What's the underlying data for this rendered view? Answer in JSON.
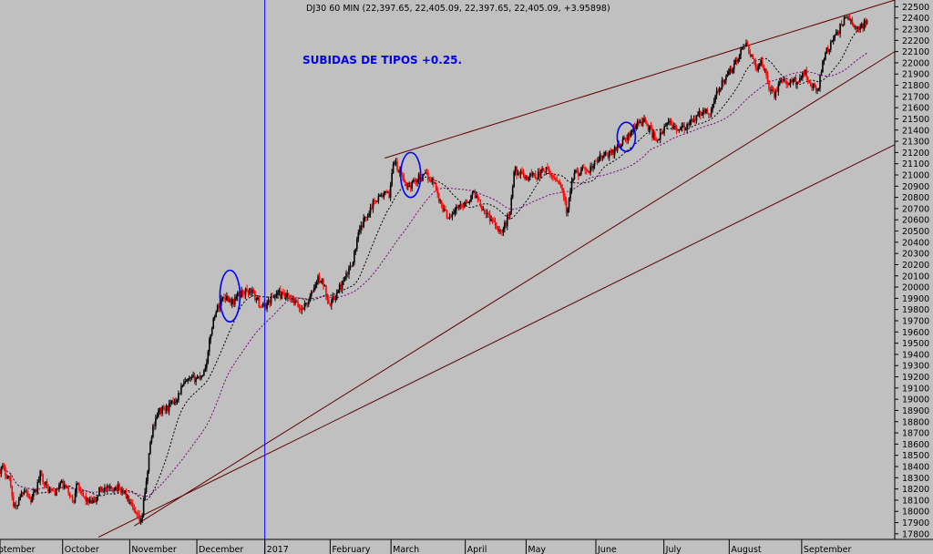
{
  "chart_data": {
    "type": "candlestick",
    "symbol_header": "DJ30 60 MIN (22,397.65, 22,405.09, 22,397.65, 22,405.09, +3.95898)",
    "annotation": "SUBIDAS DE TIPOS +0.25.",
    "x_axis": {
      "labels": [
        "September",
        "October",
        "November",
        "December",
        "2017",
        "February",
        "March",
        "April",
        "May",
        "June",
        "July",
        "August",
        "September"
      ]
    },
    "y_axis": {
      "side": "right",
      "ylim": [
        17750,
        22560
      ],
      "ticks": [
        17800,
        17900,
        18000,
        18100,
        18200,
        18300,
        18400,
        18500,
        18600,
        18700,
        18800,
        18900,
        19000,
        19100,
        19200,
        19300,
        19400,
        19500,
        19600,
        19700,
        19800,
        19900,
        20000,
        20100,
        20200,
        20300,
        20400,
        20500,
        20600,
        20700,
        20800,
        20900,
        21000,
        21100,
        21200,
        21300,
        21400,
        21500,
        21600,
        21700,
        21800,
        21900,
        22000,
        22100,
        22200,
        22300,
        22400,
        22500
      ]
    },
    "x_range": [
      0,
      1000
    ],
    "price_keyframes": [
      [
        0,
        18370
      ],
      [
        3,
        18390
      ],
      [
        7,
        18330
      ],
      [
        10,
        18310
      ],
      [
        13,
        18200
      ],
      [
        15,
        18050
      ],
      [
        18,
        18030
      ],
      [
        22,
        18140
      ],
      [
        28,
        18210
      ],
      [
        34,
        18090
      ],
      [
        40,
        18180
      ],
      [
        45,
        18330
      ],
      [
        49,
        18280
      ],
      [
        53,
        18200
      ],
      [
        58,
        18180
      ],
      [
        63,
        18170
      ],
      [
        67,
        18250
      ],
      [
        72,
        18220
      ],
      [
        78,
        18160
      ],
      [
        82,
        18060
      ],
      [
        86,
        18310
      ],
      [
        90,
        18150
      ],
      [
        95,
        18120
      ],
      [
        100,
        18070
      ],
      [
        106,
        18080
      ],
      [
        112,
        18210
      ],
      [
        117,
        18200
      ],
      [
        123,
        18190
      ],
      [
        128,
        18220
      ],
      [
        134,
        18200
      ],
      [
        138,
        18180
      ],
      [
        142,
        18120
      ],
      [
        146,
        18060
      ],
      [
        150,
        17980
      ],
      [
        155,
        17930
      ],
      [
        158,
        17890
      ],
      [
        161,
        18150
      ],
      [
        164,
        18250
      ],
      [
        166,
        18480
      ],
      [
        168,
        18600
      ],
      [
        171,
        18750
      ],
      [
        175,
        18860
      ],
      [
        179,
        18900
      ],
      [
        185,
        18910
      ],
      [
        190,
        18940
      ],
      [
        194,
        18980
      ],
      [
        198,
        19020
      ],
      [
        203,
        19100
      ],
      [
        208,
        19150
      ],
      [
        213,
        19170
      ],
      [
        218,
        19190
      ],
      [
        223,
        19200
      ],
      [
        228,
        19250
      ],
      [
        232,
        19380
      ],
      [
        236,
        19620
      ],
      [
        240,
        19760
      ],
      [
        245,
        19850
      ],
      [
        250,
        19920
      ],
      [
        255,
        19900
      ],
      [
        260,
        19860
      ],
      [
        265,
        19920
      ],
      [
        270,
        19950
      ],
      [
        275,
        19960
      ],
      [
        281,
        19970
      ],
      [
        286,
        19900
      ],
      [
        290,
        19850
      ],
      [
        295,
        19820
      ],
      [
        300,
        19870
      ],
      [
        306,
        19920
      ],
      [
        311,
        19950
      ],
      [
        316,
        19920
      ],
      [
        321,
        19910
      ],
      [
        326,
        19880
      ],
      [
        331,
        19850
      ],
      [
        336,
        19800
      ],
      [
        341,
        19840
      ],
      [
        346,
        19890
      ],
      [
        351,
        20000
      ],
      [
        356,
        20080
      ],
      [
        361,
        20040
      ],
      [
        366,
        19900
      ],
      [
        370,
        19860
      ],
      [
        375,
        19920
      ],
      [
        380,
        20000
      ],
      [
        385,
        20060
      ],
      [
        390,
        20150
      ],
      [
        395,
        20260
      ],
      [
        400,
        20450
      ],
      [
        405,
        20560
      ],
      [
        410,
        20650
      ],
      [
        415,
        20720
      ],
      [
        420,
        20790
      ],
      [
        425,
        20810
      ],
      [
        430,
        20830
      ],
      [
        435,
        20820
      ],
      [
        440,
        21150
      ],
      [
        444,
        21050
      ],
      [
        448,
        21000
      ],
      [
        452,
        20940
      ],
      [
        456,
        20900
      ],
      [
        460,
        20910
      ],
      [
        464,
        20960
      ],
      [
        468,
        20980
      ],
      [
        472,
        20970
      ],
      [
        476,
        21000
      ],
      [
        480,
        20970
      ],
      [
        484,
        20950
      ],
      [
        488,
        20870
      ],
      [
        492,
        20750
      ],
      [
        496,
        20690
      ],
      [
        500,
        20630
      ],
      [
        505,
        20650
      ],
      [
        510,
        20700
      ],
      [
        515,
        20720
      ],
      [
        520,
        20760
      ],
      [
        525,
        20790
      ],
      [
        530,
        20840
      ],
      [
        535,
        20780
      ],
      [
        540,
        20700
      ],
      [
        545,
        20640
      ],
      [
        550,
        20600
      ],
      [
        555,
        20550
      ],
      [
        560,
        20480
      ],
      [
        565,
        20560
      ],
      [
        570,
        20690
      ],
      [
        575,
        21050
      ],
      [
        580,
        21020
      ],
      [
        585,
        20990
      ],
      [
        590,
        20980
      ],
      [
        595,
        21010
      ],
      [
        600,
        20990
      ],
      [
        605,
        21030
      ],
      [
        610,
        21050
      ],
      [
        615,
        21000
      ],
      [
        620,
        20970
      ],
      [
        625,
        20950
      ],
      [
        630,
        20820
      ],
      [
        634,
        20630
      ],
      [
        638,
        20900
      ],
      [
        642,
        21000
      ],
      [
        646,
        21020
      ],
      [
        650,
        21060
      ],
      [
        655,
        21000
      ],
      [
        660,
        21060
      ],
      [
        665,
        21100
      ],
      [
        670,
        21150
      ],
      [
        675,
        21170
      ],
      [
        680,
        21180
      ],
      [
        685,
        21210
      ],
      [
        690,
        21250
      ],
      [
        695,
        21290
      ],
      [
        700,
        21330
      ],
      [
        705,
        21360
      ],
      [
        710,
        21450
      ],
      [
        715,
        21470
      ],
      [
        720,
        21480
      ],
      [
        725,
        21420
      ],
      [
        730,
        21350
      ],
      [
        735,
        21320
      ],
      [
        740,
        21370
      ],
      [
        745,
        21450
      ],
      [
        750,
        21460
      ],
      [
        755,
        21420
      ],
      [
        760,
        21400
      ],
      [
        765,
        21410
      ],
      [
        770,
        21450
      ],
      [
        775,
        21480
      ],
      [
        780,
        21530
      ],
      [
        785,
        21560
      ],
      [
        790,
        21560
      ],
      [
        795,
        21580
      ],
      [
        800,
        21700
      ],
      [
        805,
        21800
      ],
      [
        810,
        21850
      ],
      [
        815,
        21900
      ],
      [
        820,
        21980
      ],
      [
        825,
        22050
      ],
      [
        830,
        22120
      ],
      [
        835,
        22150
      ],
      [
        840,
        22050
      ],
      [
        845,
        21950
      ],
      [
        850,
        22000
      ],
      [
        855,
        21950
      ],
      [
        860,
        21780
      ],
      [
        865,
        21700
      ],
      [
        870,
        21800
      ],
      [
        875,
        21850
      ],
      [
        880,
        21780
      ],
      [
        885,
        21850
      ],
      [
        890,
        21830
      ],
      [
        895,
        21880
      ],
      [
        900,
        21950
      ],
      [
        905,
        21800
      ],
      [
        910,
        21780
      ],
      [
        914,
        21750
      ],
      [
        918,
        21950
      ],
      [
        922,
        22100
      ],
      [
        928,
        22150
      ],
      [
        934,
        22230
      ],
      [
        940,
        22340
      ],
      [
        945,
        22400
      ],
      [
        950,
        22380
      ],
      [
        955,
        22320
      ],
      [
        960,
        22300
      ],
      [
        965,
        22340
      ],
      [
        970,
        22400
      ]
    ],
    "series": [
      {
        "name": "",
        "kind": "moving-average",
        "color": "#000000",
        "dash": "2,2",
        "period": 25
      },
      {
        "name": "",
        "kind": "moving-average",
        "color": "#800080",
        "dash": "2,2",
        "period": 60
      }
    ],
    "trendlines": [
      {
        "x1": 430,
        "y1": 21150,
        "x2": 1000,
        "y2": 22560,
        "color": "#600000"
      },
      {
        "x1": 150,
        "y1": 17870,
        "x2": 1000,
        "y2": 22100,
        "color": "#600000"
      },
      {
        "x1": 110,
        "y1": 17770,
        "x2": 1000,
        "y2": 21270,
        "color": "#600000"
      }
    ],
    "vertical_marker": {
      "x": 296,
      "color": "#0000ff"
    },
    "ellipses": [
      {
        "cx": 257,
        "cy": 19920,
        "rx": 11,
        "ry_price": 230,
        "color": "#0000ff"
      },
      {
        "cx": 459,
        "cy": 21000,
        "rx": 11,
        "ry_price": 200,
        "color": "#0000ff"
      },
      {
        "cx": 700,
        "cy": 21340,
        "rx": 10,
        "ry_price": 130,
        "color": "#0000ff"
      }
    ],
    "grid": false,
    "legend": "none",
    "colors": {
      "background": "#c0c0c0",
      "up_candle": "#000000",
      "down_candle": "#ff0000",
      "axis": "#000000"
    }
  }
}
